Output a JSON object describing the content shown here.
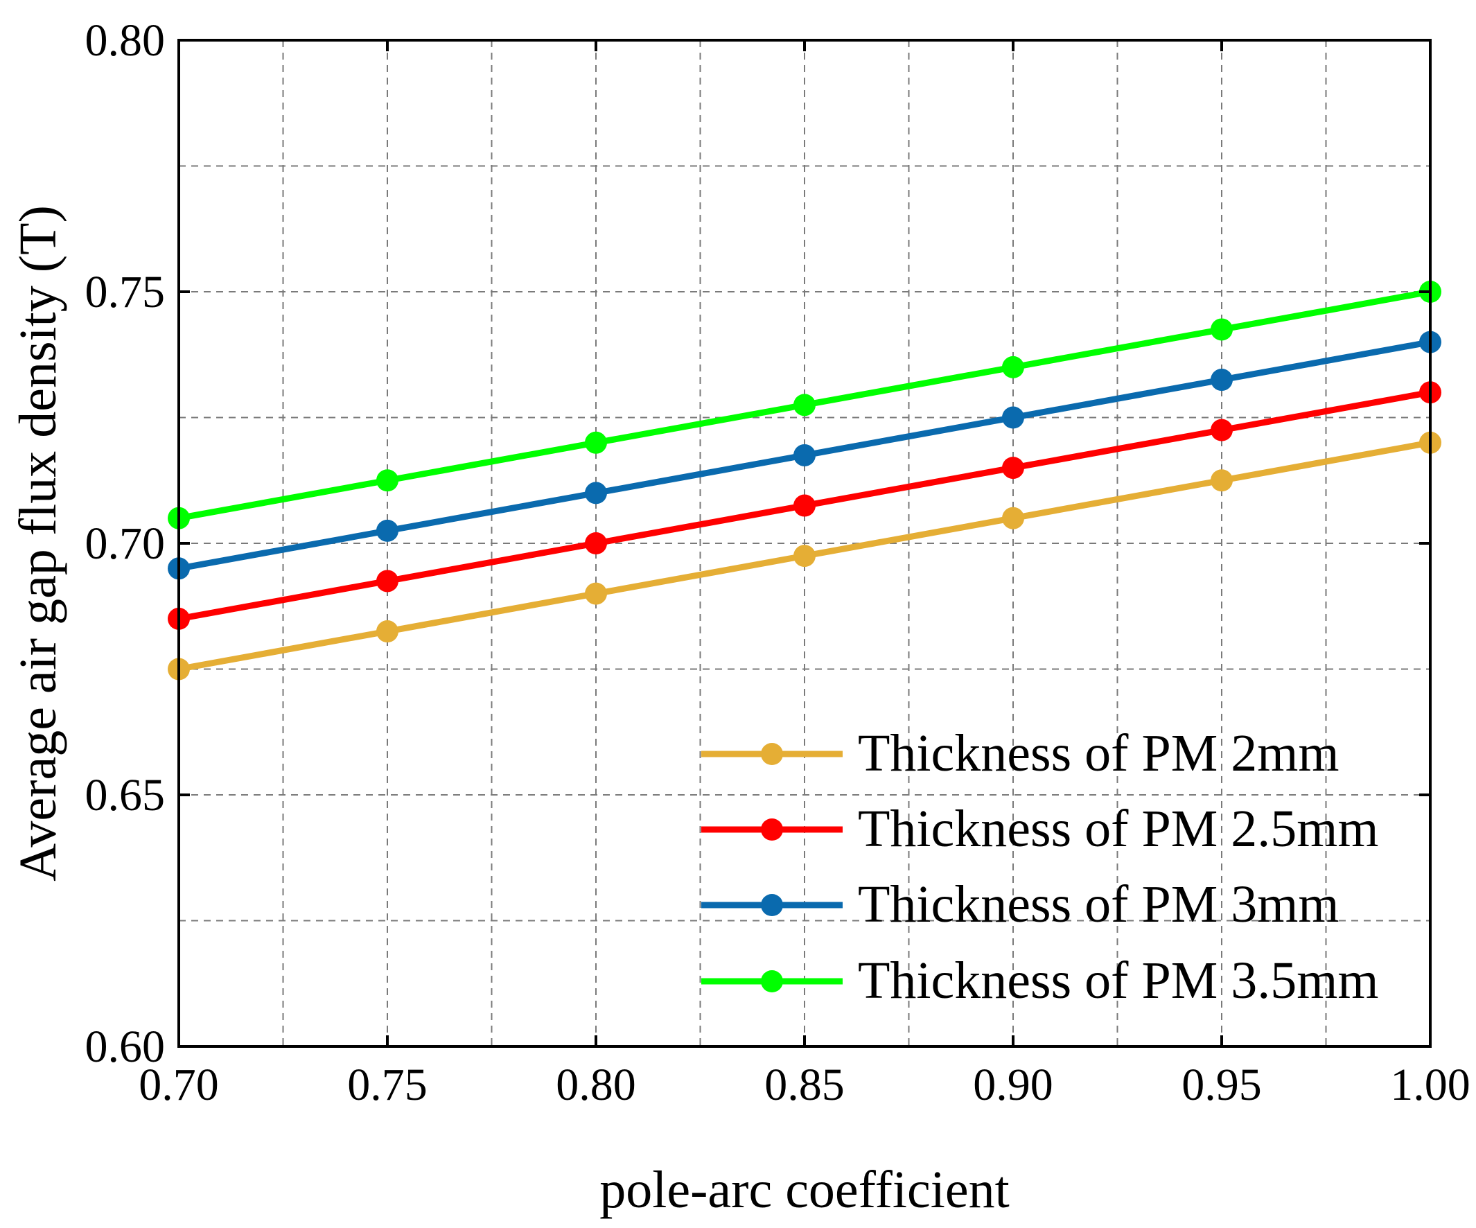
{
  "chart_data": {
    "type": "line",
    "title": "",
    "xlabel": "pole-arc coefficient",
    "ylabel": "Average air gap flux density (T)",
    "xlim": [
      0.7,
      1.0
    ],
    "ylim": [
      0.6,
      0.8
    ],
    "x_major_ticks": [
      "0.70",
      "0.75",
      "0.80",
      "0.85",
      "0.90",
      "0.95",
      "1.00"
    ],
    "y_major_ticks": [
      "0.60",
      "0.65",
      "0.70",
      "0.75",
      "0.80"
    ],
    "grid": true,
    "legend_position": "bottom-right",
    "x": [
      0.7,
      0.75,
      0.8,
      0.85,
      0.9,
      0.95,
      1.0
    ],
    "series": [
      {
        "name": "Thickness of PM 2mm",
        "color": "#E5AE35",
        "values": [
          0.675,
          0.6825,
          0.69,
          0.6975,
          0.705,
          0.7125,
          0.72
        ]
      },
      {
        "name": "Thickness of PM 2.5mm",
        "color": "#FF0000",
        "values": [
          0.685,
          0.6925,
          0.7,
          0.7075,
          0.715,
          0.7225,
          0.73
        ]
      },
      {
        "name": "Thickness of PM 3mm",
        "color": "#0A6AAE",
        "values": [
          0.695,
          0.7025,
          0.71,
          0.7175,
          0.725,
          0.7325,
          0.74
        ]
      },
      {
        "name": "Thickness of PM 3.5mm",
        "color": "#00FF00",
        "values": [
          0.705,
          0.7125,
          0.72,
          0.7275,
          0.735,
          0.7425,
          0.75
        ]
      }
    ]
  }
}
